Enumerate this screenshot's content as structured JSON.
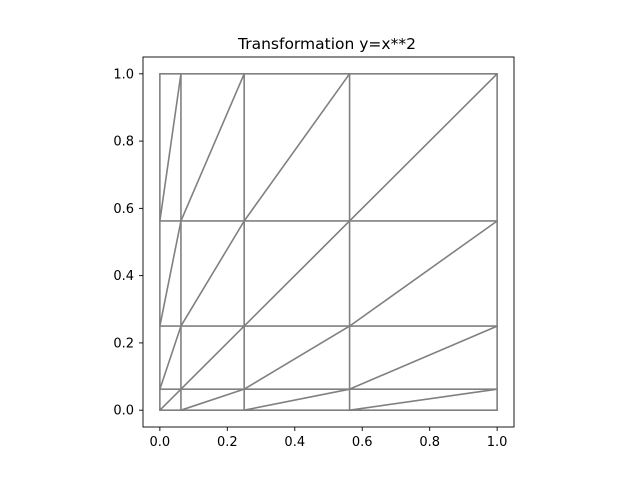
{
  "chart_data": {
    "type": "line",
    "title": "Transformation y=x**2",
    "xlabel": "",
    "ylabel": "",
    "xlim": [
      -0.05,
      1.05
    ],
    "ylim": [
      -0.05,
      1.05
    ],
    "xticks": [
      0.0,
      0.2,
      0.4,
      0.6,
      0.8,
      1.0
    ],
    "xtick_labels": [
      "0.0",
      "0.2",
      "0.4",
      "0.6",
      "0.8",
      "1.0"
    ],
    "yticks": [
      0.0,
      0.2,
      0.4,
      0.6,
      0.8,
      1.0
    ],
    "ytick_labels": [
      "0.0",
      "0.2",
      "0.4",
      "0.6",
      "0.8",
      "1.0"
    ],
    "grid": false,
    "line_color": "#808080",
    "mesh": {
      "nodes_x": [
        0.0,
        0.0625,
        0.25,
        0.5625,
        1.0
      ],
      "nodes_y": [
        0.0,
        0.0625,
        0.25,
        0.5625,
        1.0
      ],
      "triangulation": "each cell split by diagonal from lower-left to upper-right"
    }
  }
}
